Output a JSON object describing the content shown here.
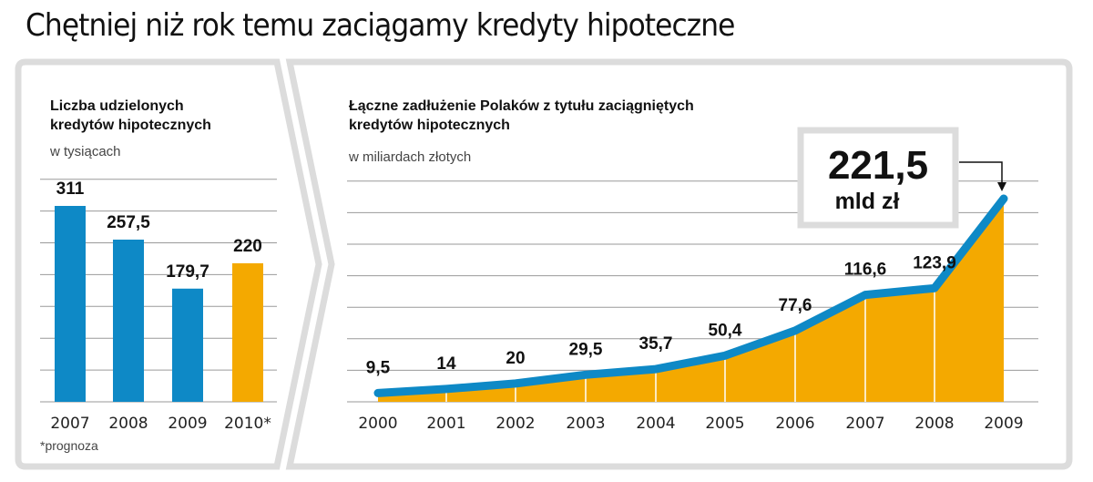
{
  "title": "Chętniej niż rok temu zaciągamy kredyty hipoteczne",
  "colors": {
    "blue": "#0e89c6",
    "orange": "#f4a900",
    "frame": "#dcdcdc",
    "grid": "#9a9a9a"
  },
  "chart_data": [
    {
      "type": "bar",
      "title_lines": [
        "Liczba udzielonych",
        "kredytów hipotecznych"
      ],
      "subtitle": "w tysiącach",
      "categories": [
        "2007",
        "2008",
        "2009",
        "2010*"
      ],
      "values": [
        311,
        257.5,
        179.7,
        220
      ],
      "value_labels": [
        "311",
        "257,5",
        "179,7",
        "220"
      ],
      "bar_colors": [
        "#0e89c6",
        "#0e89c6",
        "#0e89c6",
        "#f4a900"
      ],
      "ylim": [
        0,
        311
      ],
      "grid": true,
      "footnote": "*prognoza"
    },
    {
      "type": "area",
      "title_lines": [
        "Łączne zadłużenie Polaków z tytułu zaciągniętych",
        "kredytów hipotecznych"
      ],
      "subtitle": "w miliardach złotych",
      "x": [
        "2000",
        "2001",
        "2002",
        "2003",
        "2004",
        "2005",
        "2006",
        "2007",
        "2008",
        "2009"
      ],
      "values": [
        9.5,
        14,
        20,
        29.5,
        35.7,
        50.4,
        77.6,
        116.6,
        123.9,
        221.5
      ],
      "value_labels": [
        "9,5",
        "14",
        "20",
        "29,5",
        "35,7",
        "50,4",
        "77,6",
        "116,6",
        "123,9",
        "221,5"
      ],
      "line_color": "#0e89c6",
      "fill_color": "#f4a900",
      "ylim": [
        0,
        221.5
      ],
      "grid": true,
      "callout": {
        "value": "221,5",
        "unit": "mld zł"
      }
    }
  ]
}
